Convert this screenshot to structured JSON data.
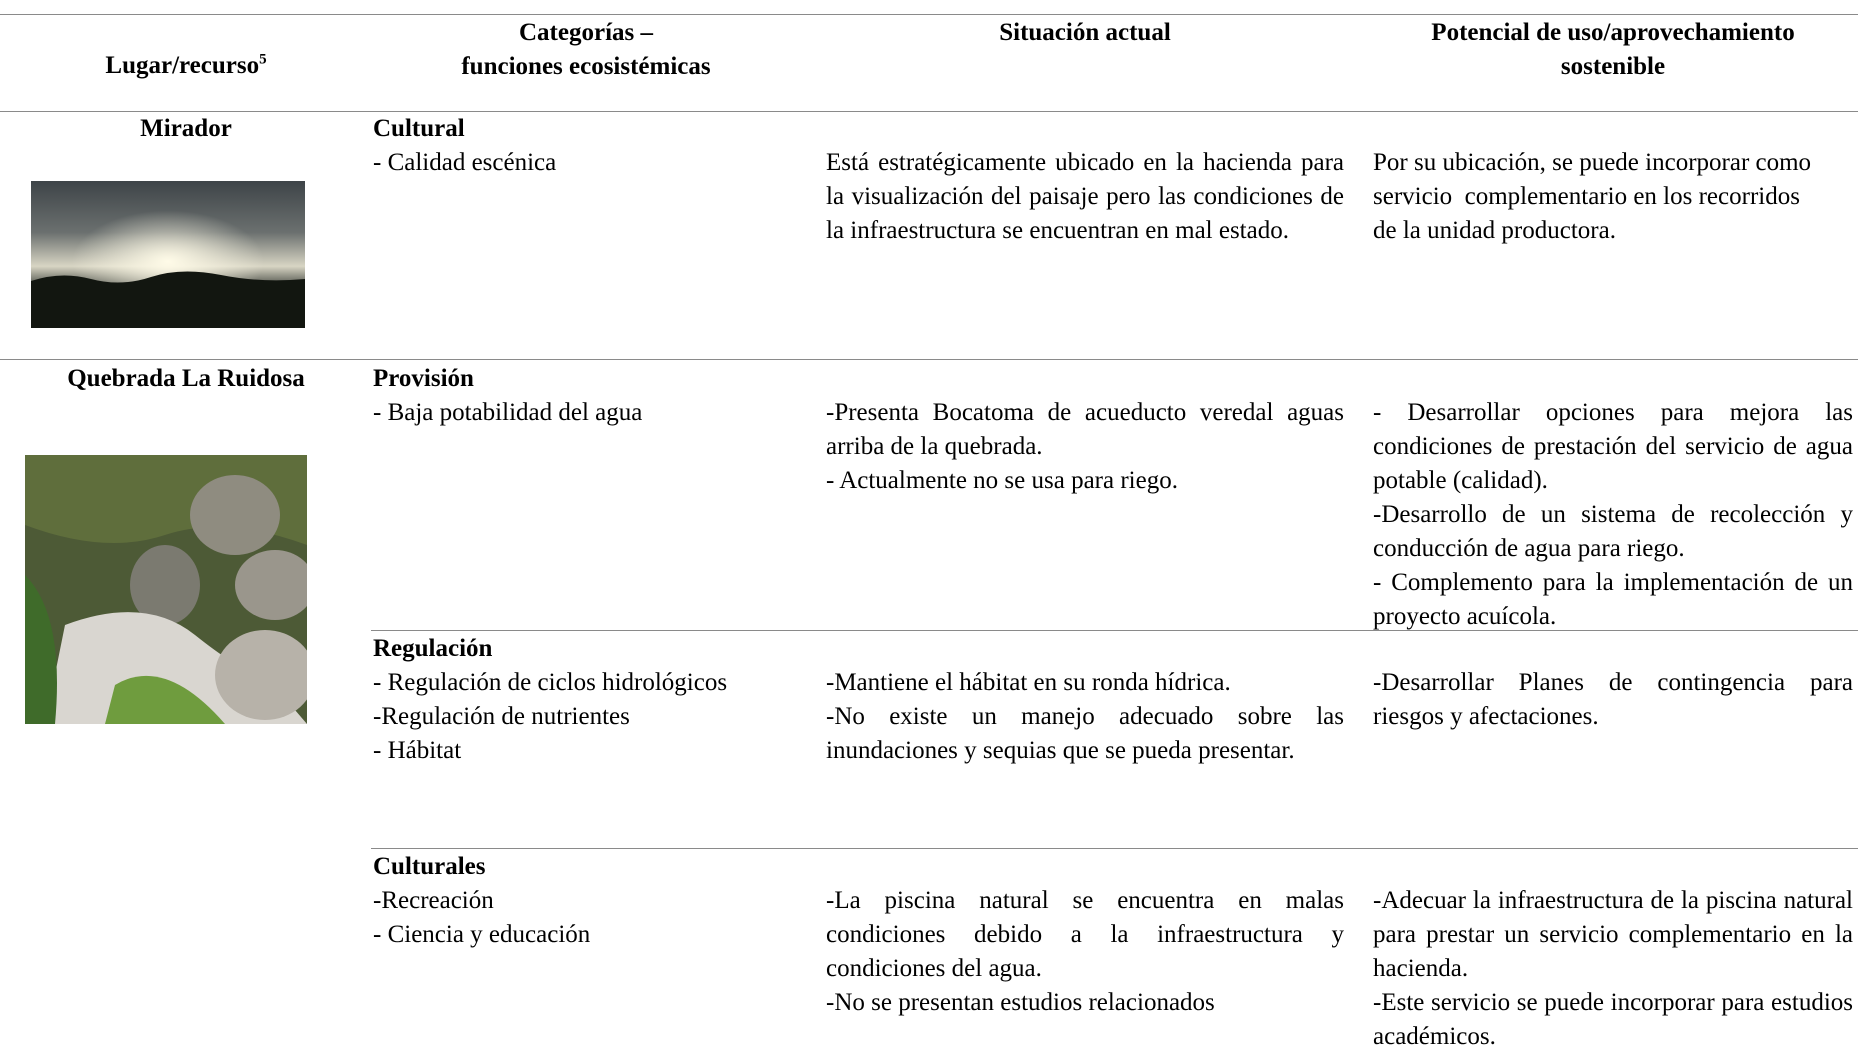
{
  "header": {
    "place": "Lugar/recurso",
    "footnote": "5",
    "category": [
      "Categorías –",
      "funciones ecosistémicas"
    ],
    "situation": "Situación actual",
    "potential": [
      "Potencial de uso/aprovechamiento",
      "sostenible"
    ]
  },
  "rows": [
    {
      "place": "Mirador",
      "groups": [
        {
          "category": "Cultural",
          "items": [
            "- Calidad escénica"
          ],
          "situation": [
            "Está estratégicamente ubicado en la hacienda para la visualización del paisaje pero las condiciones de la infraestructura se encuentran en mal estado."
          ],
          "potential": [
            "Por su ubicación, se puede incorporar como servicio  complementario en los recorridos de la unidad productora."
          ]
        }
      ]
    },
    {
      "place": "Quebrada La Ruidosa",
      "groups": [
        {
          "category": "Provisión",
          "items": [
            "- Baja potabilidad del agua"
          ],
          "situation": [
            "-Presenta Bocatoma de acueducto veredal aguas arriba de la quebrada.",
            "- Actualmente no se usa para riego."
          ],
          "potential": [
            "- Desarrollar opciones para mejora las condiciones de prestación del servicio de agua potable (calidad).",
            "-Desarrollo de un sistema de recolección y conducción de agua para riego.",
            "- Complemento para la implementación de un proyecto acuícola."
          ]
        },
        {
          "category": "Regulación",
          "items": [
            "- Regulación de ciclos hidrológicos",
            "-Regulación de nutrientes",
            "- Hábitat"
          ],
          "situation": [
            "-Mantiene el hábitat en su ronda hídrica.",
            "-No existe un manejo adecuado sobre las inundaciones y sequias que se pueda presentar."
          ],
          "potential": [
            "-Desarrollar Planes de contingencia para riesgos y afectaciones."
          ]
        },
        {
          "category": "Culturales",
          "items": [
            "-Recreación",
            "- Ciencia y educación"
          ],
          "situation": [
            "-La piscina natural se encuentra en malas condiciones debido a la infraestructura y condiciones del agua.",
            "-No se presentan estudios relacionados"
          ],
          "potential": [
            "-Adecuar la infraestructura de la piscina natural para prestar un servicio complementario en la hacienda.",
            "-Este servicio se puede incorporar para estudios académicos."
          ]
        }
      ]
    }
  ]
}
